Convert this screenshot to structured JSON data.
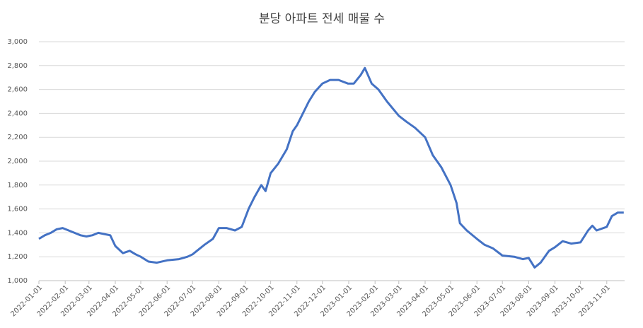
{
  "chart_data": {
    "type": "line",
    "title": "분당 아파트 전세 매물 수",
    "x": [
      "2022-01-01",
      "2022-01-08",
      "2022-01-15",
      "2022-01-22",
      "2022-01-29",
      "2022-02-05",
      "2022-02-12",
      "2022-02-19",
      "2022-02-26",
      "2022-03-05",
      "2022-03-12",
      "2022-03-19",
      "2022-03-26",
      "2022-04-01",
      "2022-04-10",
      "2022-04-18",
      "2022-04-25",
      "2022-05-01",
      "2022-05-10",
      "2022-05-20",
      "2022-06-01",
      "2022-06-15",
      "2022-06-25",
      "2022-07-01",
      "2022-07-15",
      "2022-07-25",
      "2022-08-01",
      "2022-08-10",
      "2022-08-20",
      "2022-08-28",
      "2022-09-05",
      "2022-09-12",
      "2022-09-20",
      "2022-09-25",
      "2022-10-01",
      "2022-10-10",
      "2022-10-20",
      "2022-10-27",
      "2022-11-01",
      "2022-11-08",
      "2022-11-15",
      "2022-11-22",
      "2022-12-01",
      "2022-12-10",
      "2022-12-20",
      "2022-12-31",
      "2023-01-07",
      "2023-01-15",
      "2023-01-20",
      "2023-01-28",
      "2023-02-05",
      "2023-02-15",
      "2023-03-01",
      "2023-03-10",
      "2023-03-20",
      "2023-04-01",
      "2023-04-10",
      "2023-04-20",
      "2023-05-01",
      "2023-05-08",
      "2023-05-12",
      "2023-05-20",
      "2023-06-01",
      "2023-06-10",
      "2023-06-20",
      "2023-07-01",
      "2023-07-15",
      "2023-07-25",
      "2023-08-01",
      "2023-08-08",
      "2023-08-15",
      "2023-08-25",
      "2023-09-01",
      "2023-09-10",
      "2023-09-20",
      "2023-10-01",
      "2023-10-10",
      "2023-10-15",
      "2023-10-20",
      "2023-11-01",
      "2023-11-07",
      "2023-11-14",
      "2023-11-21"
    ],
    "series": [
      {
        "name": "매물 수",
        "color": "#4472c4",
        "values": [
          1350,
          1380,
          1400,
          1430,
          1440,
          1420,
          1400,
          1380,
          1370,
          1380,
          1400,
          1390,
          1380,
          1290,
          1230,
          1250,
          1220,
          1200,
          1160,
          1150,
          1170,
          1180,
          1200,
          1220,
          1300,
          1350,
          1440,
          1440,
          1420,
          1450,
          1600,
          1700,
          1800,
          1750,
          1900,
          1980,
          2100,
          2250,
          2300,
          2400,
          2500,
          2580,
          2650,
          2680,
          2680,
          2650,
          2650,
          2720,
          2780,
          2650,
          2600,
          2500,
          2380,
          2330,
          2280,
          2200,
          2050,
          1950,
          1800,
          1650,
          1480,
          1420,
          1350,
          1300,
          1270,
          1210,
          1200,
          1180,
          1190,
          1110,
          1150,
          1250,
          1280,
          1330,
          1310,
          1320,
          1420,
          1460,
          1420,
          1450,
          1540,
          1570,
          1570
        ]
      }
    ],
    "xlim": [
      "2022-01-01",
      "2023-11-22"
    ],
    "xticks": [
      "2022-01-01",
      "2022-02-01",
      "2022-03-01",
      "2022-04-01",
      "2022-05-01",
      "2022-06-01",
      "2022-07-01",
      "2022-08-01",
      "2022-09-01",
      "2022-10-01",
      "2022-11-01",
      "2022-12-01",
      "2023-01-01",
      "2023-02-01",
      "2023-03-01",
      "2023-04-01",
      "2023-05-01",
      "2023-06-01",
      "2023-07-01",
      "2023-08-01",
      "2023-09-01",
      "2023-10-01",
      "2023-11-01"
    ],
    "ylim": [
      1000,
      3000
    ],
    "yticks": [
      {
        "value": 1000,
        "label": "1,000"
      },
      {
        "value": 1200,
        "label": "1,200"
      },
      {
        "value": 1400,
        "label": "1,400"
      },
      {
        "value": 1600,
        "label": "1,600"
      },
      {
        "value": 1800,
        "label": "1,800"
      },
      {
        "value": 2000,
        "label": "2,000"
      },
      {
        "value": 2200,
        "label": "2,200"
      },
      {
        "value": 2400,
        "label": "2,400"
      },
      {
        "value": 2600,
        "label": "2,600"
      },
      {
        "value": 2800,
        "label": "2,800"
      },
      {
        "value": 3000,
        "label": "3,000"
      }
    ],
    "grid": true
  }
}
